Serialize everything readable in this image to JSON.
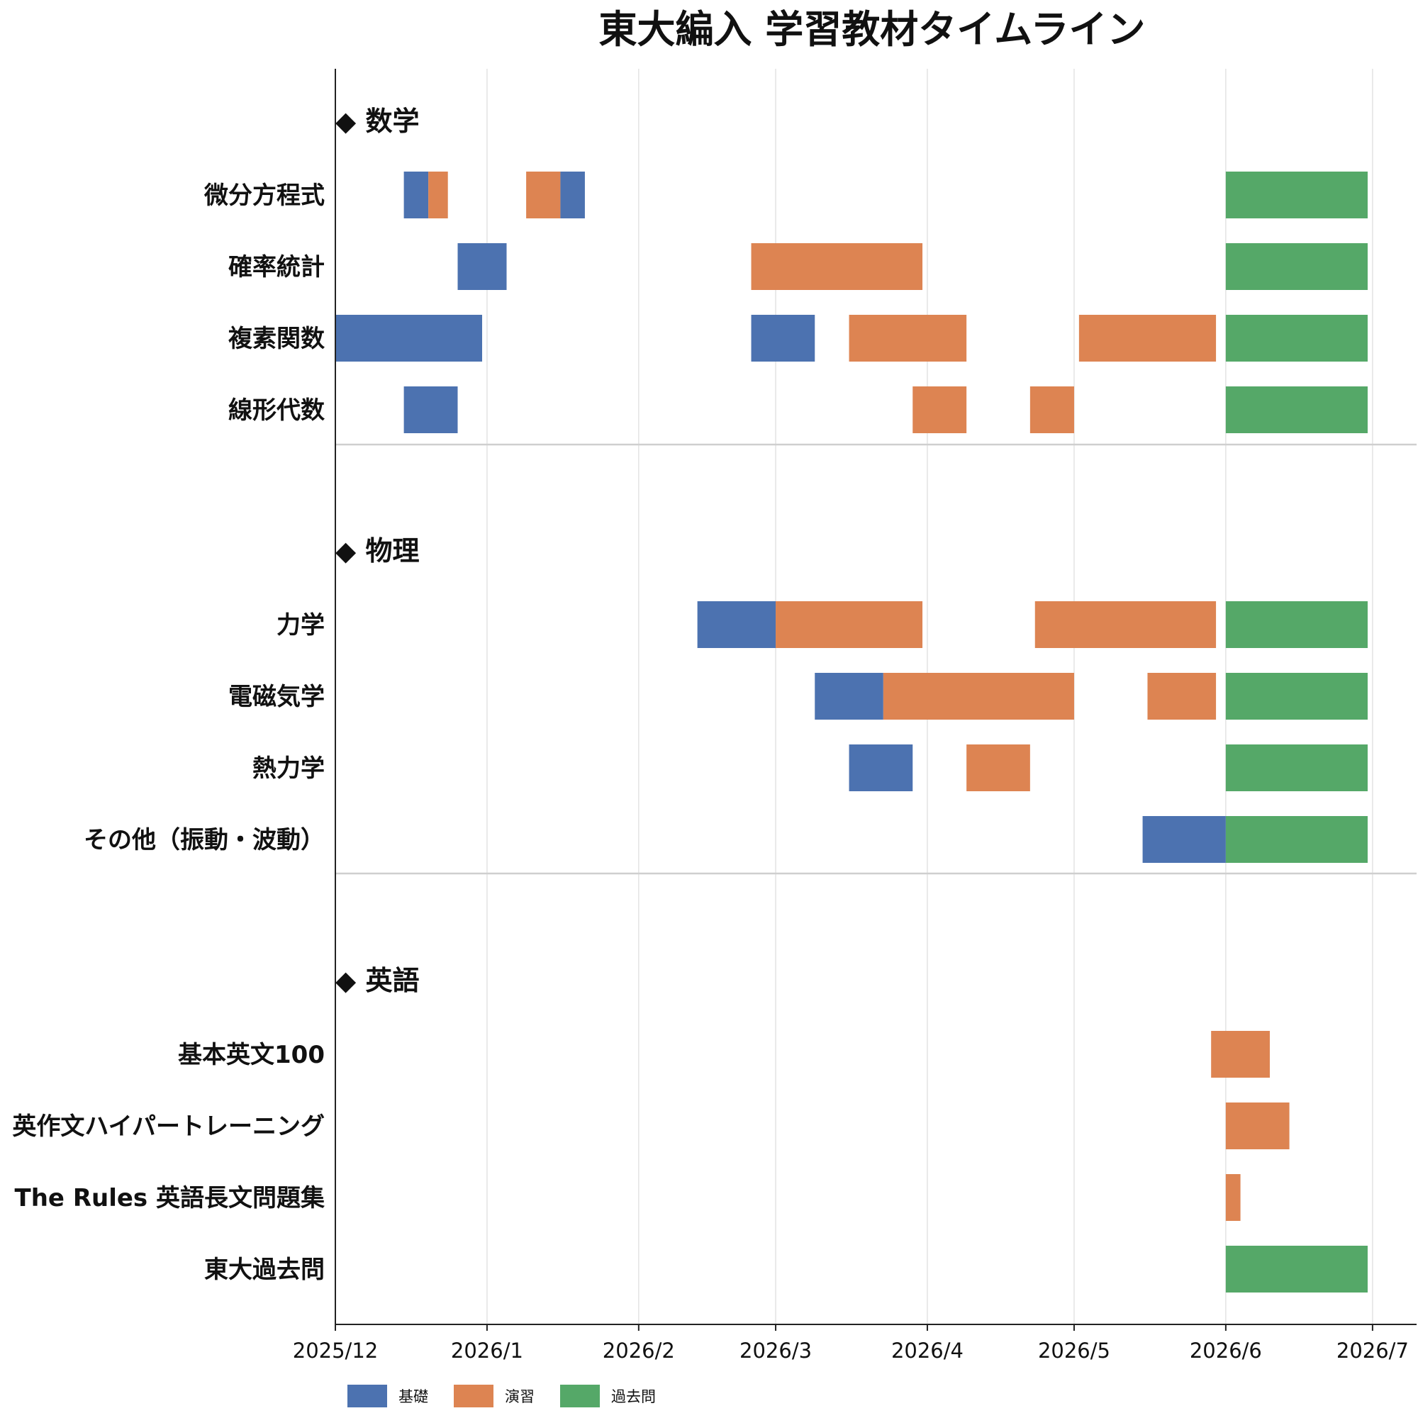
{
  "chart_data": {
    "type": "gantt",
    "title": "東大編入 学習教材タイムライン",
    "x_axis": {
      "type": "date",
      "range": [
        "2025-12-01",
        "2026-07-10"
      ],
      "ticks": [
        {
          "date": "2025-12-01",
          "label": "2025/12"
        },
        {
          "date": "2026-01-01",
          "label": "2026/1"
        },
        {
          "date": "2026-02-01",
          "label": "2026/2"
        },
        {
          "date": "2026-03-01",
          "label": "2026/3"
        },
        {
          "date": "2026-04-01",
          "label": "2026/4"
        },
        {
          "date": "2026-05-01",
          "label": "2026/5"
        },
        {
          "date": "2026-06-01",
          "label": "2026/6"
        },
        {
          "date": "2026-07-01",
          "label": "2026/7"
        }
      ],
      "grid": true
    },
    "categories_legend": [
      {
        "key": "basic",
        "label": "基礎",
        "color": "#4c72b0"
      },
      {
        "key": "practice",
        "label": "演習",
        "color": "#dd8452"
      },
      {
        "key": "past",
        "label": "過去問",
        "color": "#55a868"
      }
    ],
    "legend_position": "bottom-left",
    "groups": [
      {
        "label": "◆ 数学",
        "rows": [
          {
            "label": "微分方程式",
            "bars": [
              {
                "start": "2025-12-15",
                "end": "2025-12-20",
                "cat": "basic"
              },
              {
                "start": "2025-12-20",
                "end": "2025-12-24",
                "cat": "practice"
              },
              {
                "start": "2026-01-09",
                "end": "2026-01-16",
                "cat": "practice"
              },
              {
                "start": "2026-01-16",
                "end": "2026-01-21",
                "cat": "basic"
              },
              {
                "start": "2026-06-01",
                "end": "2026-06-30",
                "cat": "past"
              }
            ]
          },
          {
            "label": "確率統計",
            "bars": [
              {
                "start": "2025-12-26",
                "end": "2026-01-05",
                "cat": "basic"
              },
              {
                "start": "2026-02-24",
                "end": "2026-03-31",
                "cat": "practice"
              },
              {
                "start": "2026-06-01",
                "end": "2026-06-30",
                "cat": "past"
              }
            ]
          },
          {
            "label": "複素関数",
            "bars": [
              {
                "start": "2025-12-01",
                "end": "2025-12-31",
                "cat": "basic"
              },
              {
                "start": "2026-02-24",
                "end": "2026-03-09",
                "cat": "basic"
              },
              {
                "start": "2026-03-16",
                "end": "2026-04-09",
                "cat": "practice"
              },
              {
                "start": "2026-05-02",
                "end": "2026-05-30",
                "cat": "practice"
              },
              {
                "start": "2026-06-01",
                "end": "2026-06-30",
                "cat": "past"
              }
            ]
          },
          {
            "label": "線形代数",
            "bars": [
              {
                "start": "2025-12-15",
                "end": "2025-12-26",
                "cat": "basic"
              },
              {
                "start": "2026-03-29",
                "end": "2026-04-09",
                "cat": "practice"
              },
              {
                "start": "2026-04-22",
                "end": "2026-05-01",
                "cat": "practice"
              },
              {
                "start": "2026-06-01",
                "end": "2026-06-30",
                "cat": "past"
              }
            ]
          }
        ]
      },
      {
        "label": "◆ 物理",
        "rows": [
          {
            "label": "力学",
            "bars": [
              {
                "start": "2026-02-13",
                "end": "2026-03-01",
                "cat": "basic"
              },
              {
                "start": "2026-03-01",
                "end": "2026-03-31",
                "cat": "practice"
              },
              {
                "start": "2026-04-23",
                "end": "2026-05-30",
                "cat": "practice"
              },
              {
                "start": "2026-06-01",
                "end": "2026-06-30",
                "cat": "past"
              }
            ]
          },
          {
            "label": "電磁気学",
            "bars": [
              {
                "start": "2026-03-09",
                "end": "2026-03-23",
                "cat": "basic"
              },
              {
                "start": "2026-03-23",
                "end": "2026-05-01",
                "cat": "practice"
              },
              {
                "start": "2026-05-16",
                "end": "2026-05-30",
                "cat": "practice"
              },
              {
                "start": "2026-06-01",
                "end": "2026-06-30",
                "cat": "past"
              }
            ]
          },
          {
            "label": "熱力学",
            "bars": [
              {
                "start": "2026-03-16",
                "end": "2026-03-29",
                "cat": "basic"
              },
              {
                "start": "2026-04-09",
                "end": "2026-04-22",
                "cat": "practice"
              },
              {
                "start": "2026-06-01",
                "end": "2026-06-30",
                "cat": "past"
              }
            ]
          },
          {
            "label": "その他（振動・波動）",
            "bars": [
              {
                "start": "2026-05-15",
                "end": "2026-06-01",
                "cat": "basic"
              },
              {
                "start": "2026-06-01",
                "end": "2026-06-30",
                "cat": "past"
              }
            ]
          }
        ]
      },
      {
        "label": "◆ 英語",
        "rows": [
          {
            "label": "基本英文100",
            "bars": [
              {
                "start": "2026-05-29",
                "end": "2026-06-10",
                "cat": "practice"
              }
            ]
          },
          {
            "label": "英作文ハイパートレーニング",
            "bars": [
              {
                "start": "2026-06-01",
                "end": "2026-06-14",
                "cat": "practice"
              }
            ]
          },
          {
            "label": "The Rules 英語長文問題集",
            "bars": [
              {
                "start": "2026-06-01",
                "end": "2026-06-04",
                "cat": "practice"
              }
            ]
          },
          {
            "label": "東大過去問",
            "bars": [
              {
                "start": "2026-06-01",
                "end": "2026-06-30",
                "cat": "past"
              }
            ]
          }
        ]
      }
    ]
  }
}
